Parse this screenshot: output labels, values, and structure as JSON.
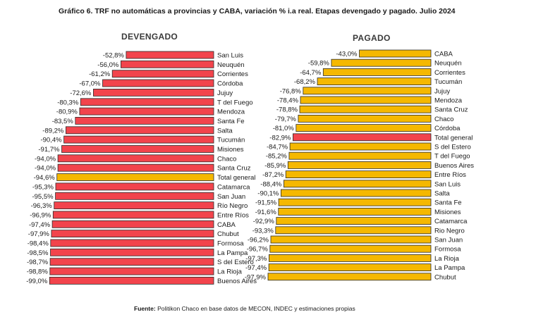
{
  "title": "Gráfico 6. TRF no automáticas a provincias y CABA, variación % i.a real. Etapas devengado y pagado. Julio 2024",
  "source": {
    "label": "Fuente:",
    "text": " Politikon Chaco en base datos de MECON, INDEC y estimaciones propias"
  },
  "colors": {
    "province_bar_devengado": "#f2444c",
    "province_bar_pagado": "#f5b800",
    "total_bar_devengado": "#f5b800",
    "total_bar_pagado": "#f2444c",
    "bar_outline": "#2b2b2b"
  },
  "chart_data": [
    {
      "type": "bar",
      "orientation": "horizontal",
      "title": "DEVENGADO",
      "xlim": [
        -100,
        0
      ],
      "grid": false,
      "categories": [
        "San Luis",
        "Neuquén",
        "Corrientes",
        "Córdoba",
        "Jujuy",
        "T del Fuego",
        "Mendoza",
        "Santa Fe",
        "Salta",
        "Tucumán",
        "Misiones",
        "Chaco",
        "Santa Cruz",
        "Total general",
        "Catamarca",
        "San Juan",
        "Río Negro",
        "Entre Ríos",
        "CABA",
        "Chubut",
        "Formosa",
        "La Pampa",
        "S del Estero",
        "La Rioja",
        "Buenos Aires"
      ],
      "values": [
        -52.8,
        -56.0,
        -61.2,
        -67.0,
        -72.6,
        -80.3,
        -80.9,
        -83.5,
        -89.2,
        -90.4,
        -91.7,
        -94.0,
        -94.0,
        -94.6,
        -95.3,
        -95.5,
        -96.3,
        -96.9,
        -97.4,
        -97.9,
        -98.4,
        -98.5,
        -98.7,
        -98.8,
        -99.0
      ],
      "value_labels": [
        "-52,8%",
        "-56,0%",
        "-61,2%",
        "-67,0%",
        "-72,6%",
        "-80,3%",
        "-80,9%",
        "-83,5%",
        "-89,2%",
        "-90,4%",
        "-91,7%",
        "-94,0%",
        "-94,0%",
        "-94,6%",
        "-95,3%",
        "-95,5%",
        "-96,3%",
        "-96,9%",
        "-97,4%",
        "-97,9%",
        "-98,4%",
        "-98,5%",
        "-98,7%",
        "-98,8%",
        "-99,0%"
      ],
      "highlight": "Total general"
    },
    {
      "type": "bar",
      "orientation": "horizontal",
      "title": "PAGADO",
      "xlim": [
        -100,
        0
      ],
      "grid": false,
      "categories": [
        "CABA",
        "Neuquén",
        "Corrientes",
        "Tucumán",
        "Jujuy",
        "Mendoza",
        "Santa Cruz",
        "Chaco",
        "Córdoba",
        "Total general",
        "S del Estero",
        "T del Fuego",
        "Buenos Aires",
        "Entre Ríos",
        "San Luis",
        "Salta",
        "Santa Fe",
        "Misiones",
        "Catamarca",
        "Rio Negro",
        "San Juan",
        "Formosa",
        "La Rioja",
        "La Pampa",
        "Chubut"
      ],
      "values": [
        -43.0,
        -59.8,
        -64.7,
        -68.2,
        -76.8,
        -78.4,
        -78.8,
        -79.7,
        -81.0,
        -82.9,
        -84.7,
        -85.2,
        -85.9,
        -87.2,
        -88.4,
        -90.1,
        -91.5,
        -91.6,
        -92.9,
        -93.3,
        -96.2,
        -96.7,
        -97.3,
        -97.4,
        -97.9
      ],
      "value_labels": [
        "-43,0%",
        "-59,8%",
        "-64,7%",
        "-68,2%",
        "-76,8%",
        "-78,4%",
        "-78,8%",
        "-79,7%",
        "-81,0%",
        "-82,9%",
        "-84,7%",
        "-85,2%",
        "-85,9%",
        "-87,2%",
        "-88,4%",
        "-90,1%",
        "-91,5%",
        "-91,6%",
        "-92,9%",
        "-93,3%",
        "-96,2%",
        "-96,7%",
        "-97,3%",
        "-97,4%",
        "-97,9%"
      ],
      "highlight": "Total general"
    }
  ]
}
